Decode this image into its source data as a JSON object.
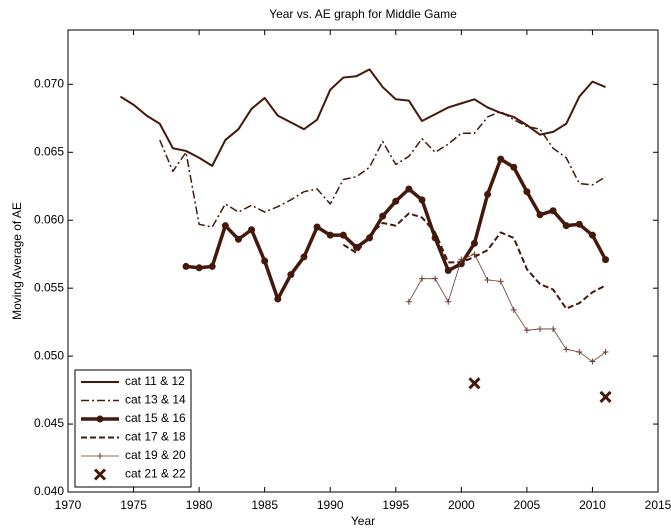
{
  "chart_data": {
    "type": "line",
    "title": "Year vs. AE graph for Middle Game",
    "x_label": "Year",
    "y_label": "Moving Average of AE",
    "x": [
      1974,
      1975,
      1976,
      1977,
      1978,
      1979,
      1980,
      1981,
      1982,
      1983,
      1984,
      1985,
      1986,
      1987,
      1988,
      1989,
      1990,
      1991,
      1992,
      1993,
      1994,
      1995,
      1996,
      1997,
      1998,
      1999,
      2000,
      2001,
      2002,
      2003,
      2004,
      2005,
      2006,
      2007,
      2008,
      2009,
      2010,
      2011
    ],
    "xlim": [
      1970,
      2015
    ],
    "xticks": [
      1970,
      1975,
      1980,
      1985,
      1990,
      1995,
      2000,
      2005,
      2010,
      2015
    ],
    "ylim": [
      0.04,
      0.074
    ],
    "yticks": [
      {
        "value": 0.04,
        "label": "0.040"
      },
      0.045,
      {
        "value": 0.05,
        "label": "0.050"
      },
      0.055,
      {
        "value": 0.06,
        "label": "0.060"
      },
      0.065,
      {
        "value": 0.07,
        "label": "0.070"
      }
    ],
    "legend": "lower left",
    "series": [
      {
        "name": "cat 11 & 12",
        "color": "#45180c",
        "linestyle": "solid",
        "linewidth": 2,
        "marker": "none",
        "values": [
          0.0691,
          0.0685,
          0.0677,
          0.0671,
          0.0653,
          0.0651,
          0.0646,
          0.064,
          0.0659,
          0.0667,
          0.0682,
          0.069,
          0.0677,
          0.0672,
          0.0667,
          0.0674,
          0.0696,
          0.0705,
          0.0706,
          0.0711,
          0.0698,
          0.0689,
          0.0688,
          0.0673,
          0.0678,
          0.0683,
          0.0686,
          0.0689,
          0.0683,
          0.0679,
          0.0676,
          0.067,
          0.0663,
          0.0665,
          0.0671,
          0.0691,
          0.0702,
          0.0698
        ]
      },
      {
        "name": "cat 13 & 14",
        "color": "#45180c",
        "linestyle": "dashdot",
        "linewidth": 1.5,
        "marker": "none",
        "values": [
          null,
          null,
          null,
          0.0659,
          0.0636,
          0.065,
          0.0597,
          0.0595,
          0.0612,
          0.0606,
          0.0611,
          0.0606,
          0.061,
          0.0615,
          0.0621,
          0.0623,
          0.0612,
          0.063,
          0.0632,
          0.0639,
          0.0658,
          0.0641,
          0.0647,
          0.066,
          0.065,
          0.0656,
          0.0664,
          0.0664,
          0.0676,
          0.068,
          0.0674,
          0.0669,
          0.0667,
          0.0653,
          0.0646,
          0.0627,
          0.0626,
          0.0632
        ]
      },
      {
        "name": "cat 15 & 16",
        "color": "#45180c",
        "linestyle": "solid",
        "linewidth": 3.5,
        "marker": "dot",
        "values": [
          null,
          null,
          null,
          null,
          null,
          0.0566,
          0.0565,
          0.0566,
          0.0596,
          0.0586,
          0.0593,
          0.057,
          0.0542,
          0.056,
          0.0573,
          0.0595,
          0.0589,
          0.0589,
          0.058,
          0.0587,
          0.0603,
          0.0614,
          0.0623,
          0.0615,
          0.0587,
          0.0563,
          0.0568,
          0.0583,
          0.0619,
          0.0645,
          0.0639,
          0.0621,
          0.0604,
          0.0607,
          0.0596,
          0.0597,
          0.0589,
          0.0571
        ]
      },
      {
        "name": "cat 17 & 18",
        "color": "#45180c",
        "linestyle": "dashed",
        "linewidth": 2,
        "marker": "none",
        "values": [
          null,
          null,
          null,
          null,
          null,
          null,
          null,
          null,
          null,
          null,
          null,
          null,
          null,
          null,
          null,
          null,
          null,
          0.0582,
          0.0576,
          0.0589,
          0.0598,
          0.0596,
          0.0605,
          0.0602,
          0.0591,
          0.0569,
          0.0569,
          0.0573,
          0.0578,
          0.0591,
          0.0587,
          0.0564,
          0.0553,
          0.0549,
          0.0535,
          0.0539,
          0.0547,
          0.0552
        ]
      },
      {
        "name": "cat 19 & 20",
        "color": "#6b3a2c",
        "linestyle": "solid",
        "linewidth": 0.8,
        "marker": "plus",
        "values": [
          null,
          null,
          null,
          null,
          null,
          null,
          null,
          null,
          null,
          null,
          null,
          null,
          null,
          null,
          null,
          null,
          null,
          null,
          null,
          null,
          null,
          null,
          0.054,
          0.0557,
          0.0557,
          0.054,
          0.0571,
          0.0575,
          0.0556,
          0.0555,
          0.0534,
          0.0519,
          0.052,
          0.052,
          0.0505,
          0.0503,
          0.0496,
          0.0503
        ]
      },
      {
        "name": "cat 21 & 22",
        "color": "#45180c",
        "linestyle": "none",
        "linewidth": 3,
        "marker": "x",
        "values": [
          null,
          null,
          null,
          null,
          null,
          null,
          null,
          null,
          null,
          null,
          null,
          null,
          null,
          null,
          null,
          null,
          null,
          null,
          null,
          null,
          null,
          null,
          null,
          null,
          null,
          null,
          null,
          0.048,
          null,
          null,
          null,
          null,
          null,
          null,
          null,
          null,
          null,
          0.047
        ]
      }
    ]
  }
}
